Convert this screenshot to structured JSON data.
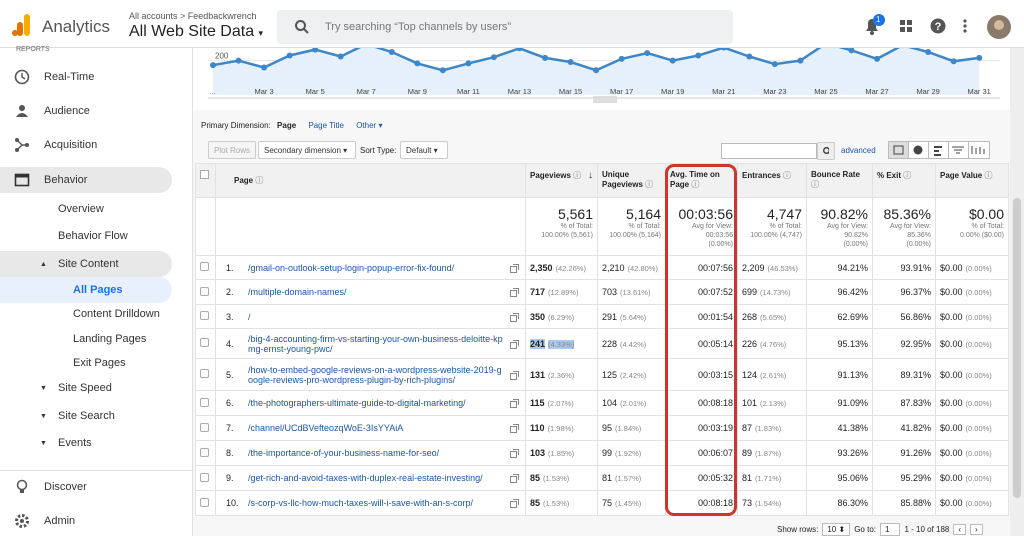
{
  "header": {
    "product": "Analytics",
    "breadcrumb": "All accounts > Feedbackwrench",
    "view": "All Web Site Data",
    "search": "Try searching “Top channels by users”",
    "notifications": "1"
  },
  "sidebar": {
    "section": "REPORTS",
    "items": [
      "Real-Time",
      "Audience",
      "Acquisition",
      "Behavior",
      "Overview",
      "Behavior Flow",
      "Site Content",
      "All Pages",
      "Content Drilldown",
      "Landing Pages",
      "Exit Pages",
      "Site Speed",
      "Site Search",
      "Events"
    ],
    "bottom": [
      "Discover",
      "Admin"
    ]
  },
  "trend": {
    "type": "line",
    "color": "#3d87c8",
    "x": [
      null,
      null,
      "Mar 3",
      null,
      "Mar 5",
      null,
      "Mar 7",
      null,
      "Mar 9",
      null,
      "Mar 11",
      null,
      "Mar 13",
      null,
      "Mar 15",
      null,
      "Mar 17",
      null,
      "Mar 19",
      null,
      "Mar 21",
      null,
      "Mar 23",
      null,
      "Mar 25",
      null,
      "Mar 27",
      null,
      "Mar 29",
      null,
      "Mar 31"
    ],
    "values": [
      187,
      200,
      180,
      215,
      232,
      212,
      248,
      225,
      192,
      172,
      192,
      210,
      236,
      208,
      196,
      172,
      205,
      222,
      200,
      215,
      238,
      212,
      190,
      200,
      250,
      230,
      205,
      245,
      225,
      198,
      208
    ],
    "ylim": [
      100,
      260
    ],
    "yticks": [
      200
    ],
    "grid": true
  },
  "dimension": {
    "label": "Primary Dimension:",
    "options": [
      "Page",
      "Page Title",
      "Other"
    ]
  },
  "toolbar": {
    "plot_rows": "Plot Rows",
    "secondary": "Secondary dimension",
    "sort_label": "Sort Type:",
    "sort": "Default",
    "advanced": "advanced"
  },
  "table": {
    "columns": [
      "Page",
      "Pageviews",
      "Unique Pageviews",
      "Avg. Time on Page",
      "Entrances",
      "Bounce Rate",
      "% Exit",
      "Page Value"
    ],
    "totals": [
      {
        "value": "5,561",
        "note": [
          "% of Total:",
          "100.00% (5,561)"
        ]
      },
      {
        "value": "5,164",
        "note": [
          "% of Total:",
          "100.00% (5,164)"
        ]
      },
      {
        "value": "00:03:56",
        "note": [
          "Avg for View:",
          "00:03:56",
          "(0.00%)"
        ]
      },
      {
        "value": "4,747",
        "note": [
          "% of Total:",
          "100.00% (4,747)"
        ]
      },
      {
        "value": "90.82%",
        "note": [
          "Avg for View:",
          "90.82%",
          "(0.00%)"
        ]
      },
      {
        "value": "85.36%",
        "note": [
          "Avg for View:",
          "85.36%",
          "(0.00%)"
        ]
      },
      {
        "value": "$0.00",
        "note": [
          "% of Total:",
          "0.00% ($0.00)"
        ]
      }
    ],
    "rows": [
      {
        "index": "1.",
        "page": "/gmail-on-outlook-setup-login-popup-error-fix-found/",
        "pageviews": "2,350",
        "pageviews_pct": "(42.26%)",
        "unique": "2,210",
        "unique_pct": "(42.80%)",
        "avg_time": "00:07:56",
        "entrances": "2,209",
        "entrances_pct": "(46.53%)",
        "bounce": "94.21%",
        "exit": "93.91%",
        "value": "$0.00",
        "value_pct": "(0.00%)"
      },
      {
        "index": "2.",
        "page": "/multiple-domain-names/",
        "pageviews": "717",
        "pageviews_pct": "(12.89%)",
        "unique": "703",
        "unique_pct": "(13.61%)",
        "avg_time": "00:07:52",
        "entrances": "699",
        "entrances_pct": "(14.73%)",
        "bounce": "96.42%",
        "exit": "96.37%",
        "value": "$0.00",
        "value_pct": "(0.00%)"
      },
      {
        "index": "3.",
        "page": "/",
        "pageviews": "350",
        "pageviews_pct": "(6.29%)",
        "unique": "291",
        "unique_pct": "(5.64%)",
        "avg_time": "00:01:54",
        "entrances": "268",
        "entrances_pct": "(5.65%)",
        "bounce": "62.69%",
        "exit": "56.86%",
        "value": "$0.00",
        "value_pct": "(0.00%)"
      },
      {
        "index": "4.",
        "page": "/big-4-accounting-firm-vs-starting-your-own-business-deloitte-kpmg-ernst-young-pwc/",
        "pageviews": "241",
        "pageviews_pct": "(4.33%)",
        "unique": "228",
        "unique_pct": "(4.42%)",
        "avg_time": "00:05:14",
        "entrances": "226",
        "entrances_pct": "(4.76%)",
        "bounce": "95.13%",
        "exit": "92.95%",
        "value": "$0.00",
        "value_pct": "(0.00%)"
      },
      {
        "index": "5.",
        "page": "/how-to-embed-google-reviews-on-a-wordpress-website-2019-google-reviews-pro-wordpress-plugin-by-rich-plugins/",
        "pageviews": "131",
        "pageviews_pct": "(2.36%)",
        "unique": "125",
        "unique_pct": "(2.42%)",
        "avg_time": "00:03:15",
        "entrances": "124",
        "entrances_pct": "(2.61%)",
        "bounce": "91.13%",
        "exit": "89.31%",
        "value": "$0.00",
        "value_pct": "(0.00%)"
      },
      {
        "index": "6.",
        "page": "/the-photographers-ultimate-guide-to-digital-marketing/",
        "pageviews": "115",
        "pageviews_pct": "(2.07%)",
        "unique": "104",
        "unique_pct": "(2.01%)",
        "avg_time": "00:08:18",
        "entrances": "101",
        "entrances_pct": "(2.13%)",
        "bounce": "91.09%",
        "exit": "87.83%",
        "value": "$0.00",
        "value_pct": "(0.00%)"
      },
      {
        "index": "7.",
        "page": "/channel/UCdBVefteozqWoE-3IsYYAiA",
        "pageviews": "110",
        "pageviews_pct": "(1.98%)",
        "unique": "95",
        "unique_pct": "(1.84%)",
        "avg_time": "00:03:19",
        "entrances": "87",
        "entrances_pct": "(1.83%)",
        "bounce": "41.38%",
        "exit": "41.82%",
        "value": "$0.00",
        "value_pct": "(0.00%)"
      },
      {
        "index": "8.",
        "page": "/the-importance-of-your-business-name-for-seo/",
        "pageviews": "103",
        "pageviews_pct": "(1.85%)",
        "unique": "99",
        "unique_pct": "(1.92%)",
        "avg_time": "00:06:07",
        "entrances": "89",
        "entrances_pct": "(1.87%)",
        "bounce": "93.26%",
        "exit": "91.26%",
        "value": "$0.00",
        "value_pct": "(0.00%)"
      },
      {
        "index": "9.",
        "page": "/get-rich-and-avoid-taxes-with-duplex-real-estate-investing/",
        "pageviews": "85",
        "pageviews_pct": "(1.53%)",
        "unique": "81",
        "unique_pct": "(1.57%)",
        "avg_time": "00:05:32",
        "entrances": "81",
        "entrances_pct": "(1.71%)",
        "bounce": "95.06%",
        "exit": "95.29%",
        "value": "$0.00",
        "value_pct": "(0.00%)"
      },
      {
        "index": "10.",
        "page": "/s-corp-vs-llc-how-much-taxes-will-i-save-with-an-s-corp/",
        "pageviews": "85",
        "pageviews_pct": "(1.53%)",
        "unique": "75",
        "unique_pct": "(1.45%)",
        "avg_time": "00:08:18",
        "entrances": "73",
        "entrances_pct": "(1.54%)",
        "bounce": "86.30%",
        "exit": "85.88%",
        "value": "$0.00",
        "value_pct": "(0.00%)"
      }
    ]
  },
  "pagination": {
    "show_rows": "Show rows:",
    "rows": "10",
    "goto": "Go to:",
    "page": "1",
    "range": "1 - 10 of 188"
  }
}
